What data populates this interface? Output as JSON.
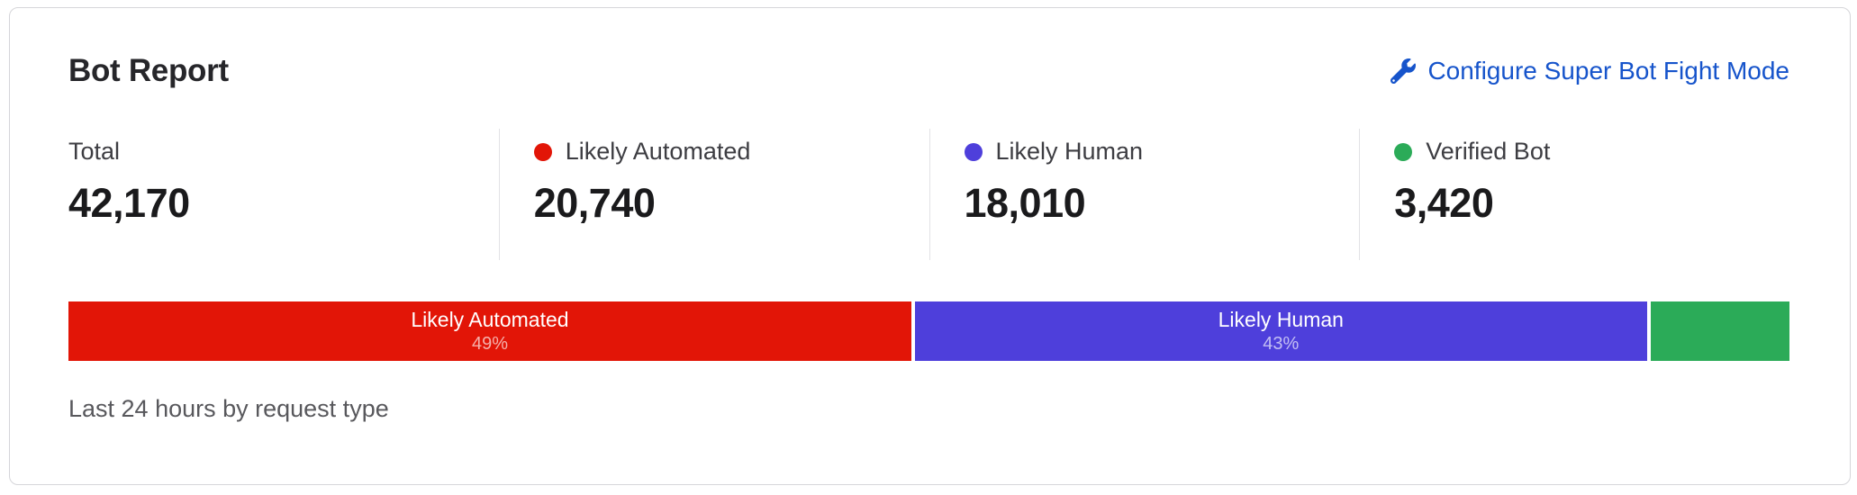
{
  "card": {
    "title": "Bot Report",
    "configure_link": {
      "label": "Configure Super Bot Fight Mode",
      "icon": "wrench-icon",
      "color": "#1654cb"
    },
    "footnote": "Last 24 hours by request type"
  },
  "stats": [
    {
      "label": "Total",
      "value": "42,170"
    },
    {
      "label": "Likely Automated",
      "value": "20,740",
      "dot_color": "#e21507"
    },
    {
      "label": "Likely Human",
      "value": "18,010",
      "dot_color": "#4e3fdb"
    },
    {
      "label": "Verified Bot",
      "value": "3,420",
      "dot_color": "#2bab58"
    }
  ],
  "chart_data": {
    "type": "bar",
    "variant": "stacked-horizontal-single-bar",
    "title": "Bot Report",
    "subtitle": "Last 24 hours by request type",
    "total": 42170,
    "legend_position": "top",
    "segments": [
      {
        "name": "Likely Automated",
        "value": 20740,
        "percent_label": "49%",
        "color": "#e21507",
        "show_label": true
      },
      {
        "name": "Likely Human",
        "value": 18010,
        "percent_label": "43%",
        "color": "#4e3fdb",
        "show_label": true
      },
      {
        "name": "Verified Bot",
        "value": 3420,
        "color": "#2bab58",
        "show_label": false
      }
    ]
  }
}
